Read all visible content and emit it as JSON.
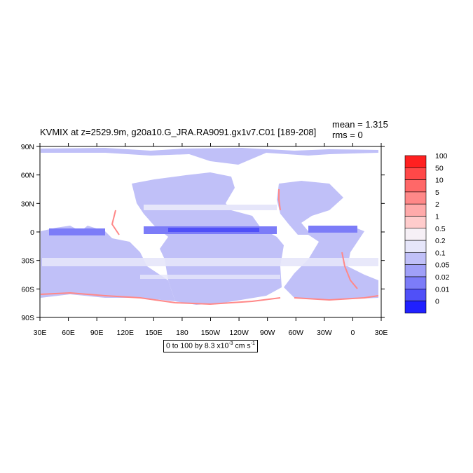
{
  "title": "KVMIX at z=2529.9m, g20a10.G_JRA.RA9091.gx1v7.C01 [189-208]",
  "stats": {
    "mean": "mean = 1.315",
    "rms": "rms = 0"
  },
  "lat_labels": [
    "90N",
    "60N",
    "30N",
    "0",
    "30S",
    "60S",
    "90S"
  ],
  "lon_labels": [
    "30E",
    "60E",
    "90E",
    "120E",
    "150E",
    "180",
    "150W",
    "120W",
    "90W",
    "60W",
    "30W",
    "0",
    "30E"
  ],
  "range_note": {
    "prefix": "0 to 100 by 8.3 x10",
    "exp": "-3",
    "suffix": " cm s",
    "exp2": "-1"
  },
  "legend": {
    "labels": [
      "100",
      "50",
      "10",
      "5",
      "2",
      "1",
      "0.5",
      "0.2",
      "0.1",
      "0.05",
      "0.02",
      "0.01",
      "0"
    ],
    "colors": [
      "#ff2020",
      "#ff4848",
      "#ff6868",
      "#ff8888",
      "#ffaaaa",
      "#ffcccc",
      "#f6f0f6",
      "#e6e6fa",
      "#c0c0f8",
      "#a0a0f8",
      "#7c7cf8",
      "#5050f8",
      "#2020ff"
    ]
  },
  "colors": {
    "ocean_base": "#c0c0f8",
    "band_light": "#e6e6fa",
    "equatorial": "#7c7cf8",
    "equatorial_core": "#5050f8",
    "coastal": "#ff8888",
    "land": "#ffffff"
  }
}
